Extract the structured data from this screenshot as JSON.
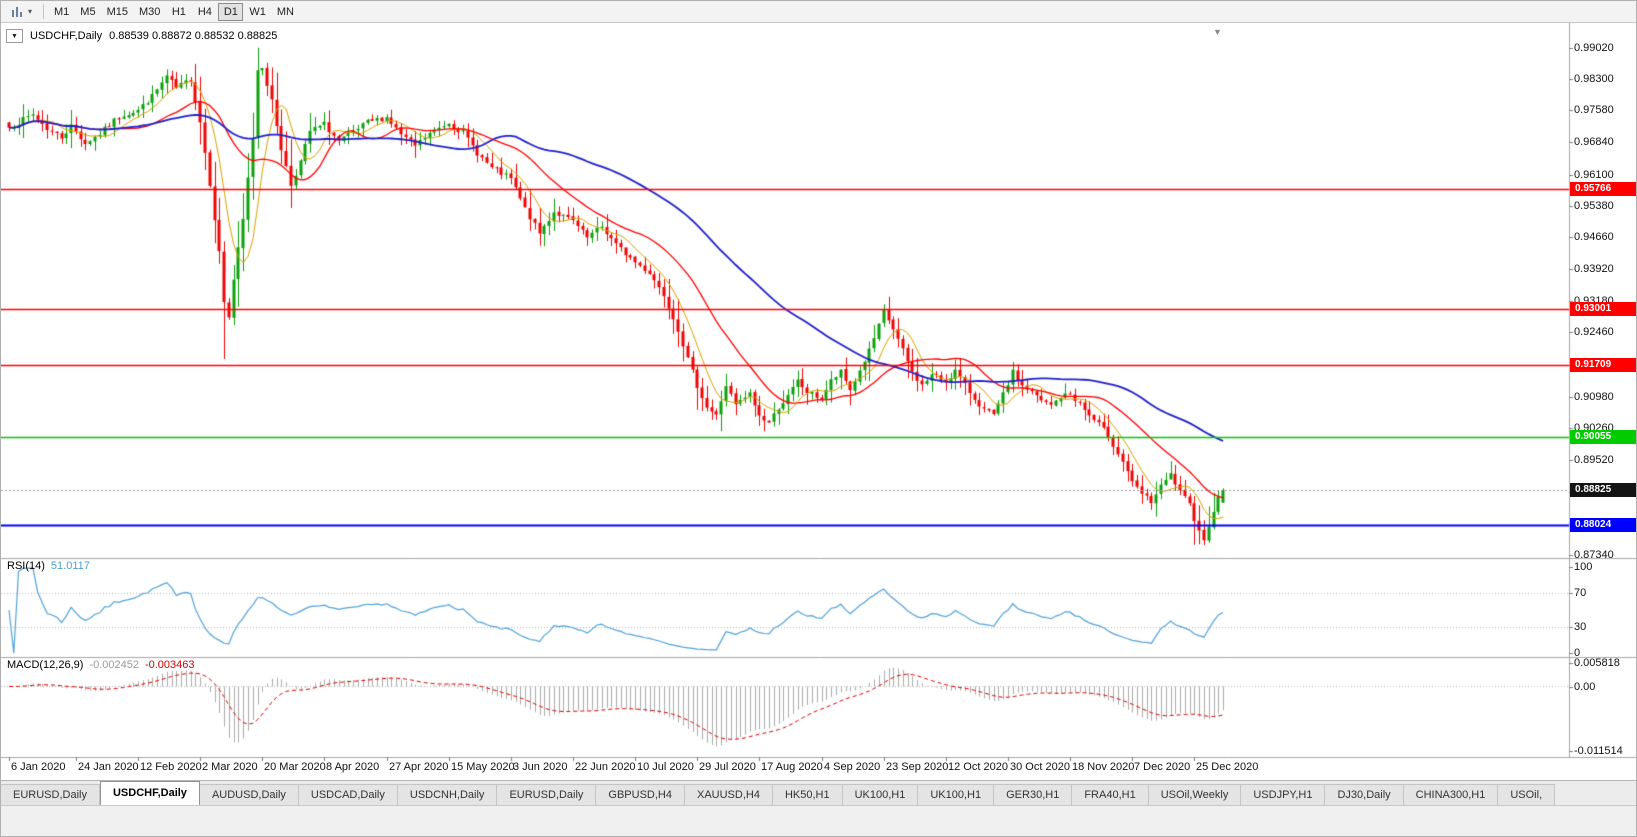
{
  "toolbar": {
    "timeframes": [
      "M1",
      "M5",
      "M15",
      "M30",
      "H1",
      "H4",
      "D1",
      "W1",
      "MN"
    ],
    "active_timeframe": "D1"
  },
  "icons": {
    "one_click": "▼",
    "dropdown": "▾",
    "shift_marker": "▼",
    "chart_bars": "bar-chart-icon"
  },
  "chart": {
    "symbol_title": "USDCHF,Daily",
    "ohlc_text": "0.88539 0.88872 0.88532 0.88825",
    "current_price_label": "0.88825"
  },
  "chart_data": {
    "type": "candlestick",
    "symbol": "USDCHF",
    "period": "Daily",
    "n_candles": 255,
    "current_price": 0.88825,
    "candle_colors": {
      "up": "#0DA00D",
      "down": "#F00404"
    },
    "x_axis": {
      "labels": [
        "6 Jan 2020",
        "24 Jan 2020",
        "12 Feb 2020",
        "2 Mar 2020",
        "20 Mar 2020",
        "8 Apr 2020",
        "27 Apr 2020",
        "15 May 2020",
        "3 Jun 2020",
        "22 Jun 2020",
        "10 Jul 2020",
        "29 Jul 2020",
        "17 Aug 2020",
        "4 Sep 2020",
        "23 Sep 2020",
        "12 Oct 2020",
        "30 Oct 2020",
        "18 Nov 2020",
        "7 Dec 2020",
        "25 Dec 2020"
      ],
      "label_candle_indices": [
        0,
        14,
        27,
        40,
        53,
        66,
        79,
        92,
        105,
        118,
        131,
        144,
        157,
        170,
        183,
        196,
        209,
        222,
        235,
        248
      ]
    },
    "y_axis": {
      "tick_labels": [
        "0.99020",
        "0.98300",
        "0.97580",
        "0.96840",
        "0.96100",
        "0.95380",
        "0.94660",
        "0.93920",
        "0.93180",
        "0.92460",
        "0.91720",
        "0.90980",
        "0.90260",
        "0.89520",
        "0.88780",
        "0.88060",
        "0.87340"
      ]
    },
    "close_anchors": [
      [
        0,
        0.9718
      ],
      [
        3,
        0.9736
      ],
      [
        5,
        0.9748
      ],
      [
        8,
        0.9716
      ],
      [
        11,
        0.9696
      ],
      [
        13,
        0.9722
      ],
      [
        16,
        0.9682
      ],
      [
        19,
        0.9704
      ],
      [
        22,
        0.9734
      ],
      [
        24,
        0.9748
      ],
      [
        27,
        0.9758
      ],
      [
        30,
        0.979
      ],
      [
        33,
        0.9836
      ],
      [
        35,
        0.9808
      ],
      [
        38,
        0.983
      ],
      [
        40,
        0.9732
      ],
      [
        42,
        0.959
      ],
      [
        44,
        0.943
      ],
      [
        45,
        0.9318
      ],
      [
        46,
        0.9282
      ],
      [
        47,
        0.9368
      ],
      [
        49,
        0.9505
      ],
      [
        51,
        0.9696
      ],
      [
        52,
        0.9852
      ],
      [
        53,
        0.986
      ],
      [
        55,
        0.9778
      ],
      [
        57,
        0.967
      ],
      [
        59,
        0.9586
      ],
      [
        61,
        0.964
      ],
      [
        63,
        0.971
      ],
      [
        66,
        0.9726
      ],
      [
        69,
        0.9686
      ],
      [
        72,
        0.9706
      ],
      [
        75,
        0.973
      ],
      [
        79,
        0.9742
      ],
      [
        82,
        0.9702
      ],
      [
        85,
        0.9676
      ],
      [
        88,
        0.9704
      ],
      [
        92,
        0.973
      ],
      [
        95,
        0.9706
      ],
      [
        98,
        0.966
      ],
      [
        101,
        0.9624
      ],
      [
        105,
        0.96
      ],
      [
        108,
        0.953
      ],
      [
        111,
        0.9474
      ],
      [
        114,
        0.9524
      ],
      [
        118,
        0.9502
      ],
      [
        121,
        0.9464
      ],
      [
        124,
        0.949
      ],
      [
        127,
        0.9448
      ],
      [
        131,
        0.9408
      ],
      [
        134,
        0.9384
      ],
      [
        137,
        0.9334
      ],
      [
        140,
        0.9254
      ],
      [
        142,
        0.9184
      ],
      [
        144,
        0.9124
      ],
      [
        146,
        0.9074
      ],
      [
        148,
        0.9054
      ],
      [
        150,
        0.9124
      ],
      [
        152,
        0.9078
      ],
      [
        155,
        0.9104
      ],
      [
        157,
        0.9054
      ],
      [
        159,
        0.9038
      ],
      [
        161,
        0.9074
      ],
      [
        163,
        0.9098
      ],
      [
        165,
        0.9134
      ],
      [
        167,
        0.9108
      ],
      [
        170,
        0.9094
      ],
      [
        172,
        0.9134
      ],
      [
        174,
        0.9154
      ],
      [
        176,
        0.9114
      ],
      [
        178,
        0.9158
      ],
      [
        180,
        0.9204
      ],
      [
        182,
        0.926
      ],
      [
        183,
        0.9294
      ],
      [
        185,
        0.9254
      ],
      [
        187,
        0.9204
      ],
      [
        189,
        0.9154
      ],
      [
        191,
        0.9124
      ],
      [
        193,
        0.9148
      ],
      [
        196,
        0.9134
      ],
      [
        198,
        0.9158
      ],
      [
        200,
        0.9124
      ],
      [
        202,
        0.9094
      ],
      [
        204,
        0.9068
      ],
      [
        206,
        0.9054
      ],
      [
        208,
        0.9102
      ],
      [
        210,
        0.9154
      ],
      [
        212,
        0.9124
      ],
      [
        214,
        0.9108
      ],
      [
        216,
        0.9088
      ],
      [
        218,
        0.9078
      ],
      [
        220,
        0.9098
      ],
      [
        222,
        0.9104
      ],
      [
        224,
        0.9082
      ],
      [
        226,
        0.9054
      ],
      [
        228,
        0.9034
      ],
      [
        230,
        0.9008
      ],
      [
        232,
        0.8968
      ],
      [
        234,
        0.8928
      ],
      [
        235,
        0.8898
      ],
      [
        237,
        0.8874
      ],
      [
        239,
        0.8856
      ],
      [
        241,
        0.889
      ],
      [
        243,
        0.8918
      ],
      [
        245,
        0.8878
      ],
      [
        247,
        0.8848
      ],
      [
        248,
        0.8818
      ],
      [
        249,
        0.8794
      ],
      [
        250,
        0.8764
      ],
      [
        251,
        0.8804
      ],
      [
        252,
        0.8838
      ],
      [
        253,
        0.8862
      ],
      [
        254,
        0.88825
      ]
    ],
    "extremes": [
      {
        "index": 33,
        "high": 0.9852
      },
      {
        "index": 45,
        "low": 0.9185
      },
      {
        "index": 52,
        "high": 0.9902
      },
      {
        "index": 249,
        "low": 0.8758
      }
    ],
    "last_candle": {
      "open": 0.88539,
      "high": 0.88872,
      "low": 0.88532,
      "close": 0.88825
    },
    "moving_averages": [
      {
        "type": "sma",
        "period": 7,
        "color": "#D9A300"
      },
      {
        "type": "sma",
        "period": 21,
        "color": "#FF0000"
      },
      {
        "type": "sma",
        "period": 55,
        "color": "#2020CC"
      }
    ],
    "horizontal_levels": [
      {
        "price": 0.95766,
        "label": "0.95766",
        "color": "#FF0000"
      },
      {
        "price": 0.93001,
        "label": "0.93001",
        "color": "#FF0000"
      },
      {
        "price": 0.91709,
        "label": "0.91709",
        "color": "#FF0000"
      },
      {
        "price": 0.90055,
        "label": "0.90055",
        "color": "#00CC00"
      },
      {
        "price": 0.88024,
        "label": "0.88024",
        "color": "#0000FF"
      }
    ],
    "indicators": {
      "rsi": {
        "label": "RSI(14)",
        "period": 14,
        "value_text": "51.0117",
        "color": "#53A2D9",
        "levels": [
          30,
          70
        ],
        "scale_labels": [
          "100",
          "70",
          "30",
          "0"
        ]
      },
      "macd": {
        "label": "MACD(12,26,9)",
        "fast": 12,
        "slow": 26,
        "signal": 9,
        "value_main_text": "-0.002452",
        "value_signal_text": "-0.003463",
        "histogram_color": "#ABABAB",
        "signal_color": "#E00000",
        "scale_labels": [
          "0.005818",
          "0.00",
          "-0.011514"
        ]
      }
    }
  },
  "tabs": {
    "active_index": 1,
    "items": [
      "EURUSD,Daily",
      "USDCHF,Daily",
      "AUDUSD,Daily",
      "USDCAD,Daily",
      "USDCNH,Daily",
      "EURUSD,Daily",
      "GBPUSD,H4",
      "XAUUSD,H4",
      "HK50,H1",
      "UK100,H1",
      "UK100,H1",
      "GER30,H1",
      "FRA40,H1",
      "USOil,Weekly",
      "USDJPY,H1",
      "DJ30,Daily",
      "CHINA300,H1",
      "USOil,"
    ]
  }
}
